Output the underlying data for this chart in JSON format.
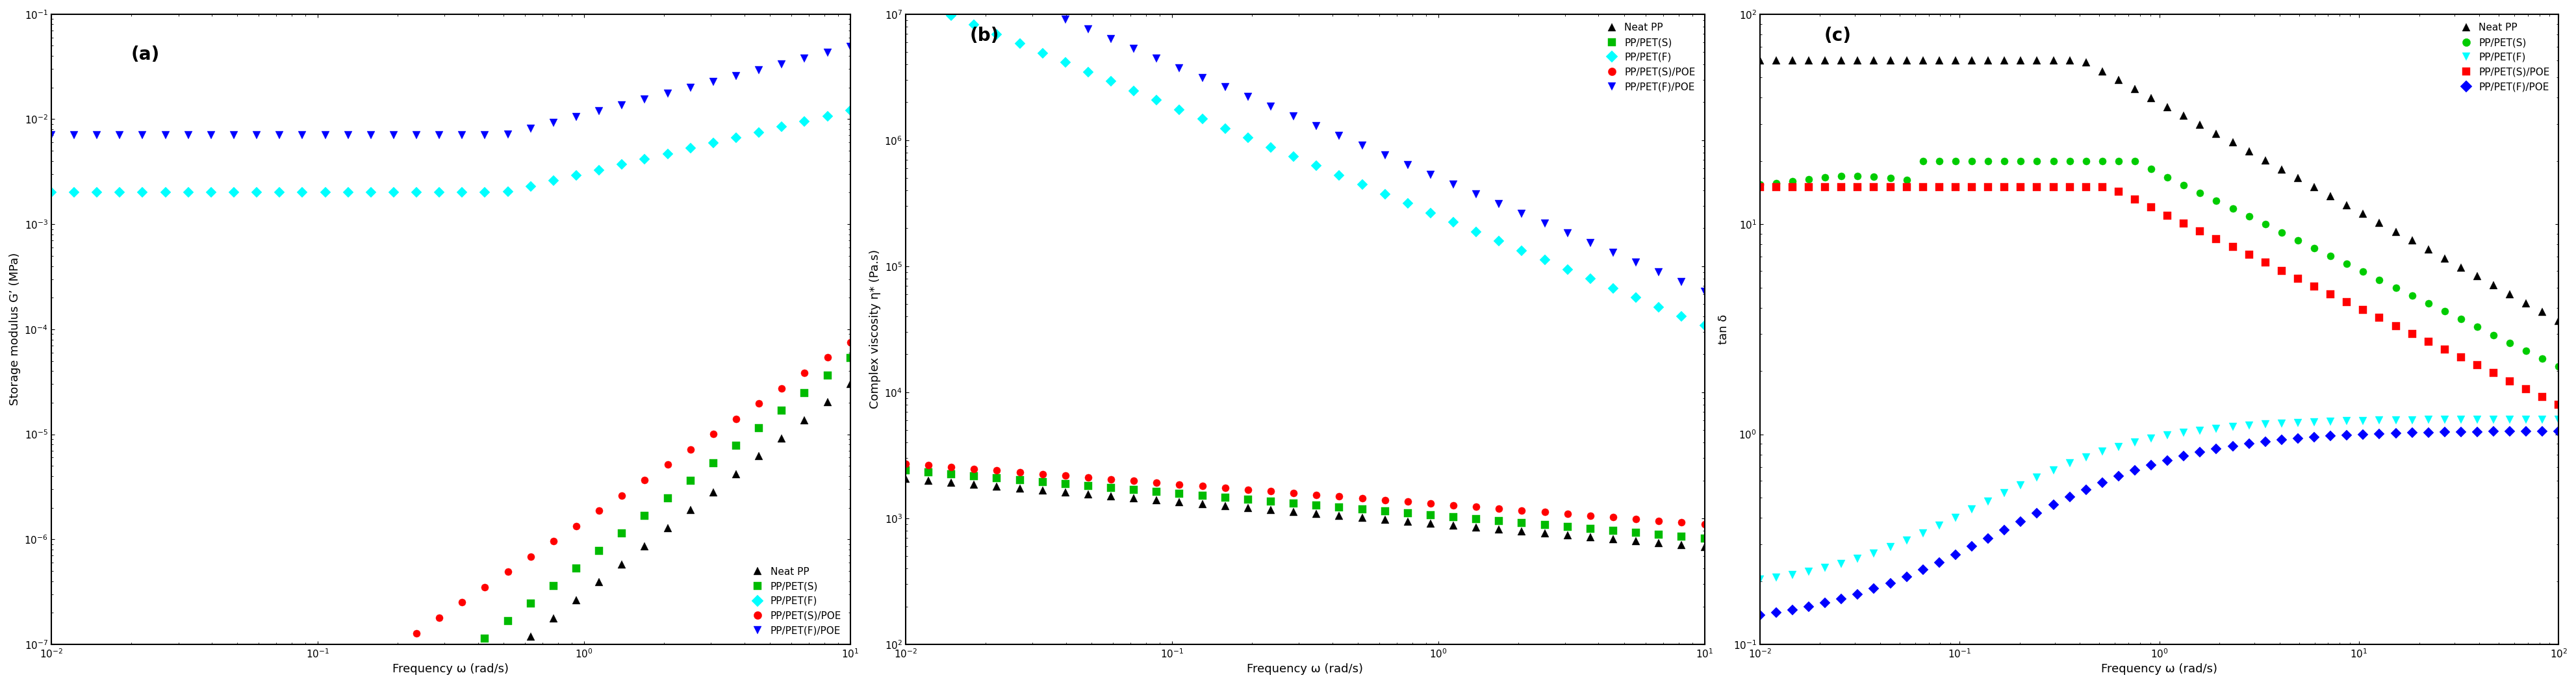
{
  "title_a": "(a)",
  "title_b": "(b)",
  "title_c": "(c)",
  "xlabel": "Frequency ω (rad/s)",
  "ylabel_a": "Storage modulus G’ (MPa)",
  "ylabel_b": "Complex viscosity η* (Pa.s)",
  "ylabel_c": "tan δ",
  "legend_labels": [
    "Neat PP",
    "PP/PET(S)",
    "PP/PET(F)",
    "PP/PET(S)/POE",
    "PP/PET(F)/POE"
  ],
  "colors_a": [
    "black",
    "#00bb00",
    "cyan",
    "red",
    "blue"
  ],
  "colors_b": [
    "black",
    "#00bb00",
    "cyan",
    "red",
    "blue"
  ],
  "colors_c": [
    "black",
    "#00cc00",
    "cyan",
    "red",
    "blue"
  ],
  "markers_a": [
    "^",
    "s",
    "D",
    "o",
    "v"
  ],
  "markers_b": [
    "^",
    "s",
    "D",
    "o",
    "v"
  ],
  "markers_c": [
    "^",
    "o",
    "v",
    "s",
    "D"
  ],
  "background_color": "white",
  "markersize": 8,
  "legend_fontsize": 11,
  "axis_fontsize": 13,
  "tick_fontsize": 11,
  "label_fontsize": 20
}
